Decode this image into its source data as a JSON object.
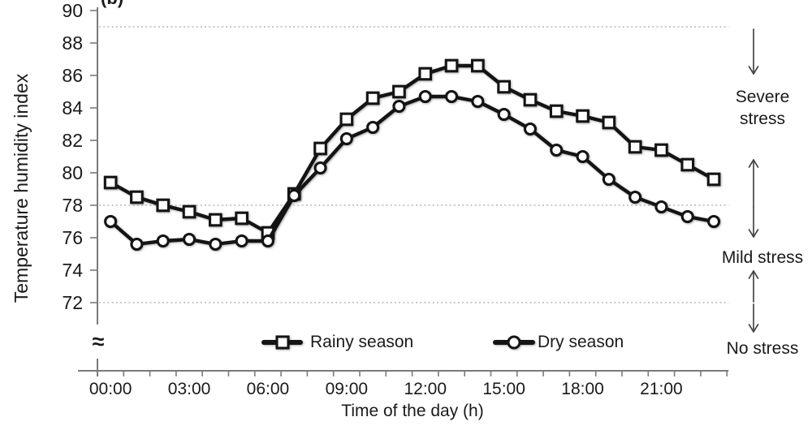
{
  "chart_data": {
    "type": "line",
    "panel_label": "(b)",
    "x_axis": {
      "label": "Time of the day (h)",
      "tick_hours": [
        0,
        3,
        6,
        9,
        12,
        15,
        18,
        21
      ],
      "tick_labels": [
        "00:00",
        "03:00",
        "06:00",
        "09:00",
        "12:00",
        "15:00",
        "18:00",
        "21:00"
      ],
      "hours_range": [
        0,
        24
      ],
      "minor_tick_every_hours": 1
    },
    "y_axis": {
      "label": "Temperature humidity index",
      "ticks": [
        90,
        88,
        86,
        84,
        82,
        80,
        78,
        76,
        74,
        72
      ],
      "range": [
        72,
        90
      ],
      "break_symbol": "≈"
    },
    "reference_lines_thi": [
      89,
      78,
      72
    ],
    "x_hours": [
      0,
      1,
      2,
      3,
      4,
      5,
      6,
      7,
      8,
      9,
      10,
      11,
      12,
      13,
      14,
      15,
      16,
      17,
      18,
      19,
      20,
      21,
      22,
      23
    ],
    "series": [
      {
        "name": "Rainy season",
        "marker": "square",
        "values": [
          79.4,
          78.5,
          78.0,
          77.6,
          77.1,
          77.2,
          76.3,
          78.7,
          81.5,
          83.3,
          84.6,
          85.0,
          86.1,
          86.6,
          86.6,
          85.3,
          84.5,
          83.8,
          83.5,
          83.1,
          81.6,
          81.4,
          80.5,
          79.6
        ]
      },
      {
        "name": "Dry season",
        "marker": "circle",
        "values": [
          77.0,
          75.6,
          75.8,
          75.9,
          75.6,
          75.8,
          75.8,
          78.6,
          80.3,
          82.1,
          82.8,
          84.1,
          84.7,
          84.7,
          84.4,
          83.6,
          82.7,
          81.4,
          81.0,
          79.6,
          78.5,
          77.9,
          77.3,
          77.0
        ]
      }
    ],
    "stress_zones": [
      {
        "label": "Severe stress",
        "thi_between": [
          78,
          89
        ]
      },
      {
        "label": "Mild stress",
        "thi_between": [
          72,
          78
        ]
      },
      {
        "label": "No stress",
        "thi_between": [
          null,
          72
        ]
      }
    ],
    "legend_position": "inside-bottom",
    "grid": "dotted reference lines only"
  },
  "colors": {
    "series_line": "#141414",
    "marker_fill": "#ffffff",
    "reference_line": "#b5b5b5",
    "axis": "#7a7a7a",
    "arrow": "#474747",
    "text": "#1a1a1a"
  }
}
